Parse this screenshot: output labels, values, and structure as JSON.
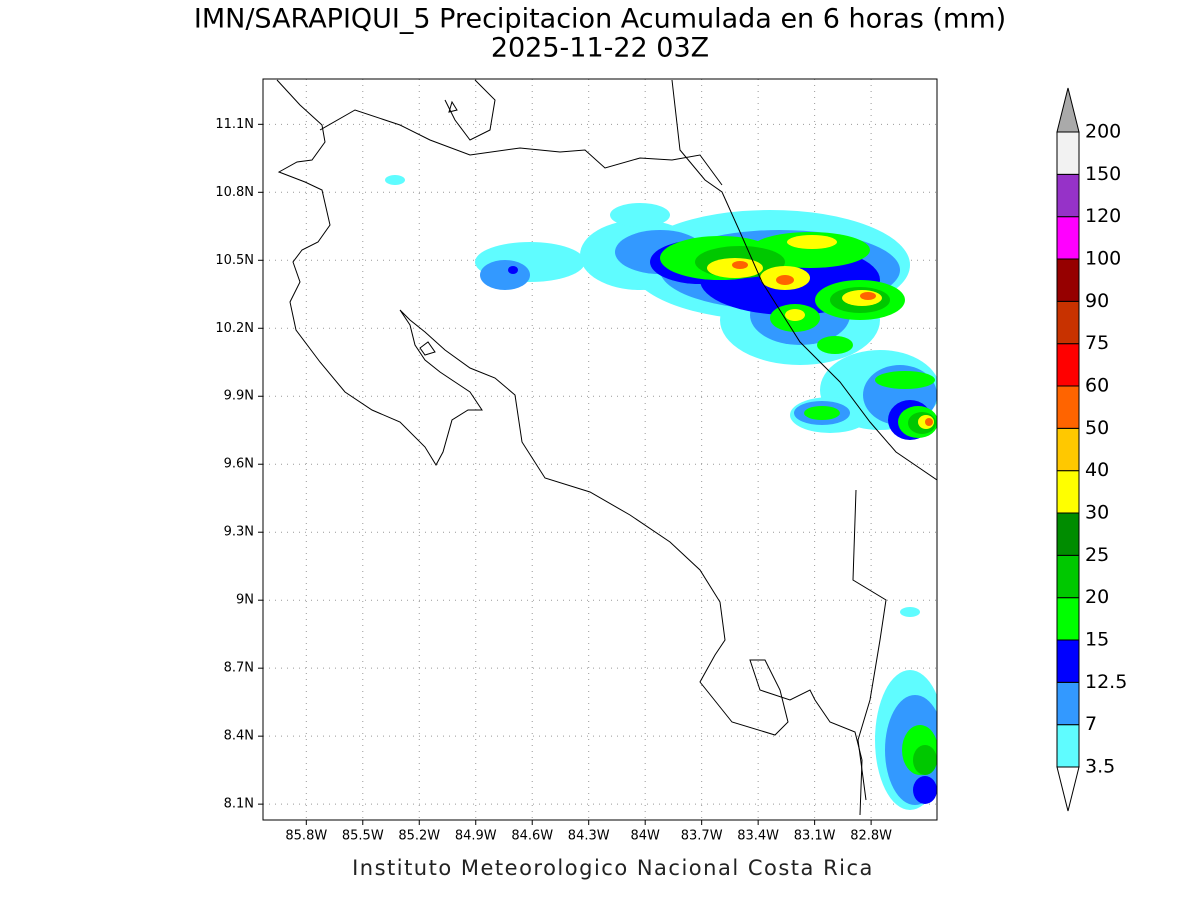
{
  "title": "IMN/SARAPIQUI_5 Precipitacion Acumulada en 6 horas (mm)",
  "subtitle": "2025-11-22 03Z",
  "map": {
    "xlim": [
      -86.03,
      -82.45
    ],
    "ylim": [
      8.03,
      11.3
    ],
    "xticks": [
      {
        "value": -85.8,
        "label": "85.8W"
      },
      {
        "value": -85.5,
        "label": "85.5W"
      },
      {
        "value": -85.2,
        "label": "85.2W"
      },
      {
        "value": -84.9,
        "label": "84.9W"
      },
      {
        "value": -84.6,
        "label": "84.6W"
      },
      {
        "value": -84.3,
        "label": "84.3W"
      },
      {
        "value": -84.0,
        "label": "84W"
      },
      {
        "value": -83.7,
        "label": "83.7W"
      },
      {
        "value": -83.4,
        "label": "83.4W"
      },
      {
        "value": -83.1,
        "label": "83.1W"
      },
      {
        "value": -82.8,
        "label": "82.8W"
      }
    ],
    "yticks": [
      {
        "value": 8.1,
        "label": "8.1N"
      },
      {
        "value": 8.4,
        "label": "8.4N"
      },
      {
        "value": 8.7,
        "label": "8.7N"
      },
      {
        "value": 9.0,
        "label": "9N"
      },
      {
        "value": 9.3,
        "label": "9.3N"
      },
      {
        "value": 9.6,
        "label": "9.6N"
      },
      {
        "value": 9.9,
        "label": "9.9N"
      },
      {
        "value": 10.2,
        "label": "10.2N"
      },
      {
        "value": 10.5,
        "label": "10.5N"
      },
      {
        "value": 10.8,
        "label": "10.8N"
      },
      {
        "value": 11.1,
        "label": "11.1N"
      }
    ],
    "grid": true
  },
  "colorbar": {
    "levels": [
      3.5,
      7,
      12.5,
      15,
      20,
      25,
      30,
      40,
      50,
      60,
      75,
      90,
      100,
      120,
      150,
      200
    ],
    "colors": [
      "#5ffcff",
      "#3399ff",
      "#0000ff",
      "#00ff00",
      "#00c800",
      "#008c00",
      "#ffff00",
      "#ffc800",
      "#ff6400",
      "#ff0000",
      "#c83200",
      "#960000",
      "#ff00ff",
      "#9632c8",
      "#f2f2f2"
    ],
    "above_color": "#aaaaaa",
    "below_color": "#ffffff"
  },
  "footer": "Instituto Meteorologico Nacional Costa Rica"
}
